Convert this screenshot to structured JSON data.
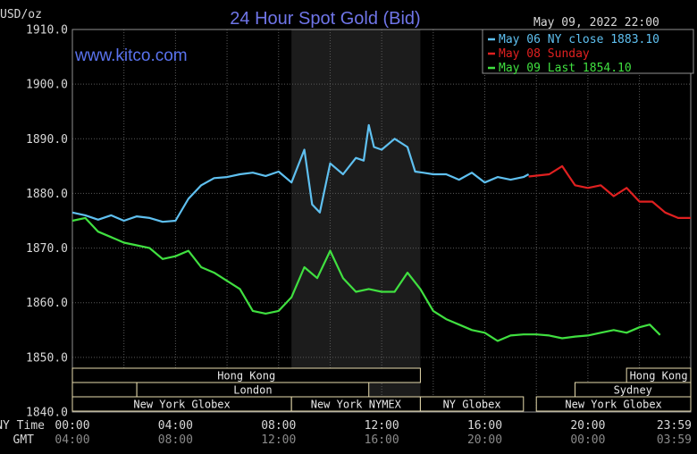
{
  "chart_data": {
    "type": "line",
    "title": "24 Hour Spot Gold (Bid)",
    "watermark": "www.kitco.com",
    "ylabel": "USD/oz",
    "timestamp": "May 09, 2022 22:00",
    "ylim": [
      1840,
      1910
    ],
    "yticks": [
      "1910.0",
      "1900.0",
      "1890.0",
      "1880.0",
      "1870.0",
      "1860.0",
      "1850.0",
      "1840.0"
    ],
    "x_label_nytime": "NY Time",
    "x_label_gmt": "GMT",
    "x_ticks_ny": [
      "00:00",
      "04:00",
      "08:00",
      "12:00",
      "16:00",
      "20:00",
      "23:59"
    ],
    "x_ticks_gmt": [
      "04:00",
      "08:00",
      "12:00",
      "16:00",
      "20:00",
      "00:00",
      "03:59"
    ],
    "grid": true,
    "highlight_hours": [
      8.5,
      13.5
    ],
    "legend_position": "top-right",
    "series": [
      {
        "name": "May 06 NY close 1883.10",
        "color": "#5fc0f0",
        "x": [
          0,
          0.5,
          1,
          1.5,
          2,
          2.5,
          3,
          3.5,
          4,
          4.5,
          5,
          5.5,
          6,
          6.5,
          7,
          7.5,
          8,
          8.5,
          9,
          9.3,
          9.6,
          10,
          10.5,
          11,
          11.3,
          11.5,
          11.7,
          12,
          12.5,
          13,
          13.3,
          13.6,
          14,
          14.5,
          15,
          15.5,
          16,
          16.5,
          17,
          17.5,
          17.7
        ],
        "y": [
          1876.5,
          1876.0,
          1875.2,
          1876.0,
          1875.0,
          1875.8,
          1875.5,
          1874.8,
          1875.0,
          1879.0,
          1881.5,
          1882.8,
          1883.0,
          1883.5,
          1883.8,
          1883.2,
          1884.0,
          1882.0,
          1888.0,
          1878.0,
          1876.5,
          1885.5,
          1883.5,
          1886.5,
          1886.0,
          1892.5,
          1888.5,
          1888.0,
          1890.0,
          1888.5,
          1884.0,
          1883.8,
          1883.5,
          1883.5,
          1882.5,
          1883.8,
          1882.0,
          1883.0,
          1882.5,
          1883.0,
          1883.5
        ]
      },
      {
        "name": "May 08 Sunday",
        "color": "#e02020",
        "x": [
          17.7,
          18.5,
          19,
          19.5,
          20,
          20.5,
          21,
          21.5,
          22,
          22.5,
          23,
          23.5,
          23.99
        ],
        "y": [
          1883.1,
          1883.5,
          1885.0,
          1881.5,
          1881.0,
          1881.5,
          1879.5,
          1881.0,
          1878.5,
          1878.5,
          1876.5,
          1875.5,
          1875.5
        ]
      },
      {
        "name": "May 09 Last 1854.10",
        "color": "#40e040",
        "x": [
          0,
          0.5,
          1,
          1.5,
          2,
          2.5,
          3,
          3.5,
          4,
          4.5,
          5,
          5.5,
          6,
          6.5,
          7,
          7.5,
          8,
          8.5,
          9,
          9.5,
          10,
          10.5,
          11,
          11.5,
          12,
          12.5,
          13,
          13.5,
          14,
          14.5,
          15,
          15.5,
          16,
          16.5,
          17,
          17.5,
          18,
          18.5,
          19,
          19.5,
          20,
          20.5,
          21,
          21.5,
          22,
          22.4,
          22.8
        ],
        "y": [
          1875.0,
          1875.5,
          1873.0,
          1872.0,
          1871.0,
          1870.5,
          1870.0,
          1868.0,
          1868.5,
          1869.5,
          1866.5,
          1865.5,
          1864.0,
          1862.5,
          1858.5,
          1858.0,
          1858.5,
          1861.0,
          1866.5,
          1864.5,
          1869.5,
          1864.5,
          1862.0,
          1862.5,
          1862.0,
          1862.0,
          1865.5,
          1862.5,
          1858.5,
          1857.0,
          1856.0,
          1855.0,
          1854.5,
          1853.0,
          1854.0,
          1854.2,
          1854.2,
          1854.0,
          1853.5,
          1853.8,
          1854.0,
          1854.5,
          1855.0,
          1854.5,
          1855.5,
          1856.0,
          1854.1
        ]
      }
    ],
    "market_sessions": [
      {
        "label": "Hong Kong",
        "start": 0,
        "end": 13.5,
        "row": 1
      },
      {
        "label": "",
        "start": 0,
        "end": 2.5,
        "row": 2
      },
      {
        "label": "London",
        "start": 2.5,
        "end": 11.5,
        "row": 2
      },
      {
        "label": "New York Globex",
        "start": 0,
        "end": 8.5,
        "row": 3
      },
      {
        "label": "New York NYMEX",
        "start": 8.5,
        "end": 13.5,
        "row": 3
      },
      {
        "label": "NY Globex",
        "start": 13.5,
        "end": 17.5,
        "row": 3
      },
      {
        "label": "Hong Kong",
        "start": 21.5,
        "end": 23.99,
        "row": 1
      },
      {
        "label": "Sydney",
        "start": 19.5,
        "end": 23.99,
        "row": 2
      },
      {
        "label": "New York Globex",
        "start": 18.0,
        "end": 23.99,
        "row": 3
      }
    ]
  }
}
